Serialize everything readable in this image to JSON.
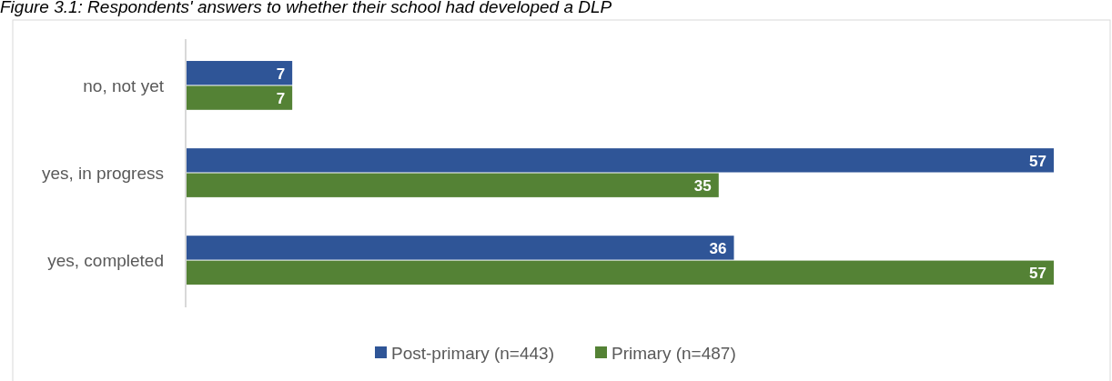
{
  "chart_data": {
    "type": "bar",
    "orientation": "horizontal",
    "title": "Figure 3.1: Respondents' answers to whether their school had developed a DLP",
    "categories": [
      "no, not yet",
      "yes, in progress",
      "yes, completed"
    ],
    "series": [
      {
        "name": "Post-primary (n=443)",
        "color": "#2f5597",
        "values": [
          7,
          57,
          36
        ]
      },
      {
        "name": "Primary (n=487)",
        "color": "#548235",
        "values": [
          7,
          35,
          57
        ]
      }
    ],
    "xlim": [
      0,
      57
    ],
    "data_labels": true,
    "legend": "bottom",
    "grid": false
  }
}
